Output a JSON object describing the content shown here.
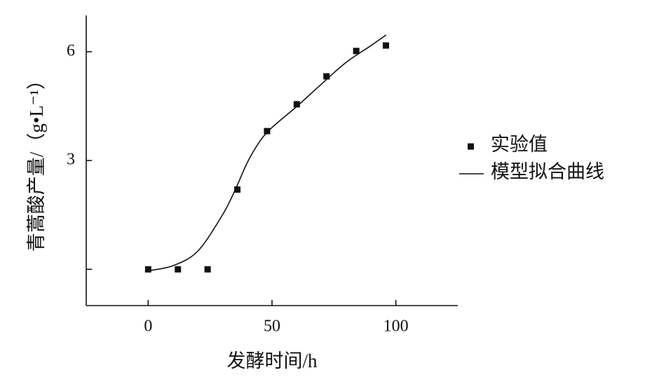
{
  "chart_data": {
    "type": "scatter",
    "xlabel": "发酵时间/h",
    "ylabel": "青蒿酸产量/（g•L⁻¹）",
    "xlim": [
      -25,
      125
    ],
    "xticks": [
      0,
      50,
      100
    ],
    "ylim": [
      -1,
      7
    ],
    "yticks": [
      {
        "value": 0,
        "label": null
      },
      3,
      6
    ],
    "legend": "right",
    "series": [
      {
        "name": "实验值",
        "color": "#111111",
        "marker": "square",
        "x": [
          0,
          12,
          24,
          36,
          48,
          60,
          72,
          84,
          96
        ],
        "values": [
          0,
          0,
          0,
          2.2,
          3.81,
          4.55,
          5.32,
          6.02,
          6.17
        ]
      },
      {
        "name": "模型拟合曲线",
        "color": "#111111",
        "marker": "line",
        "x": [
          0,
          10,
          20,
          30,
          35,
          40,
          45,
          50,
          60,
          70,
          80,
          90,
          96
        ],
        "values": [
          -0.04,
          0.1,
          0.5,
          1.5,
          2.17,
          2.94,
          3.52,
          3.91,
          4.49,
          5.11,
          5.71,
          6.17,
          6.46
        ]
      }
    ]
  }
}
